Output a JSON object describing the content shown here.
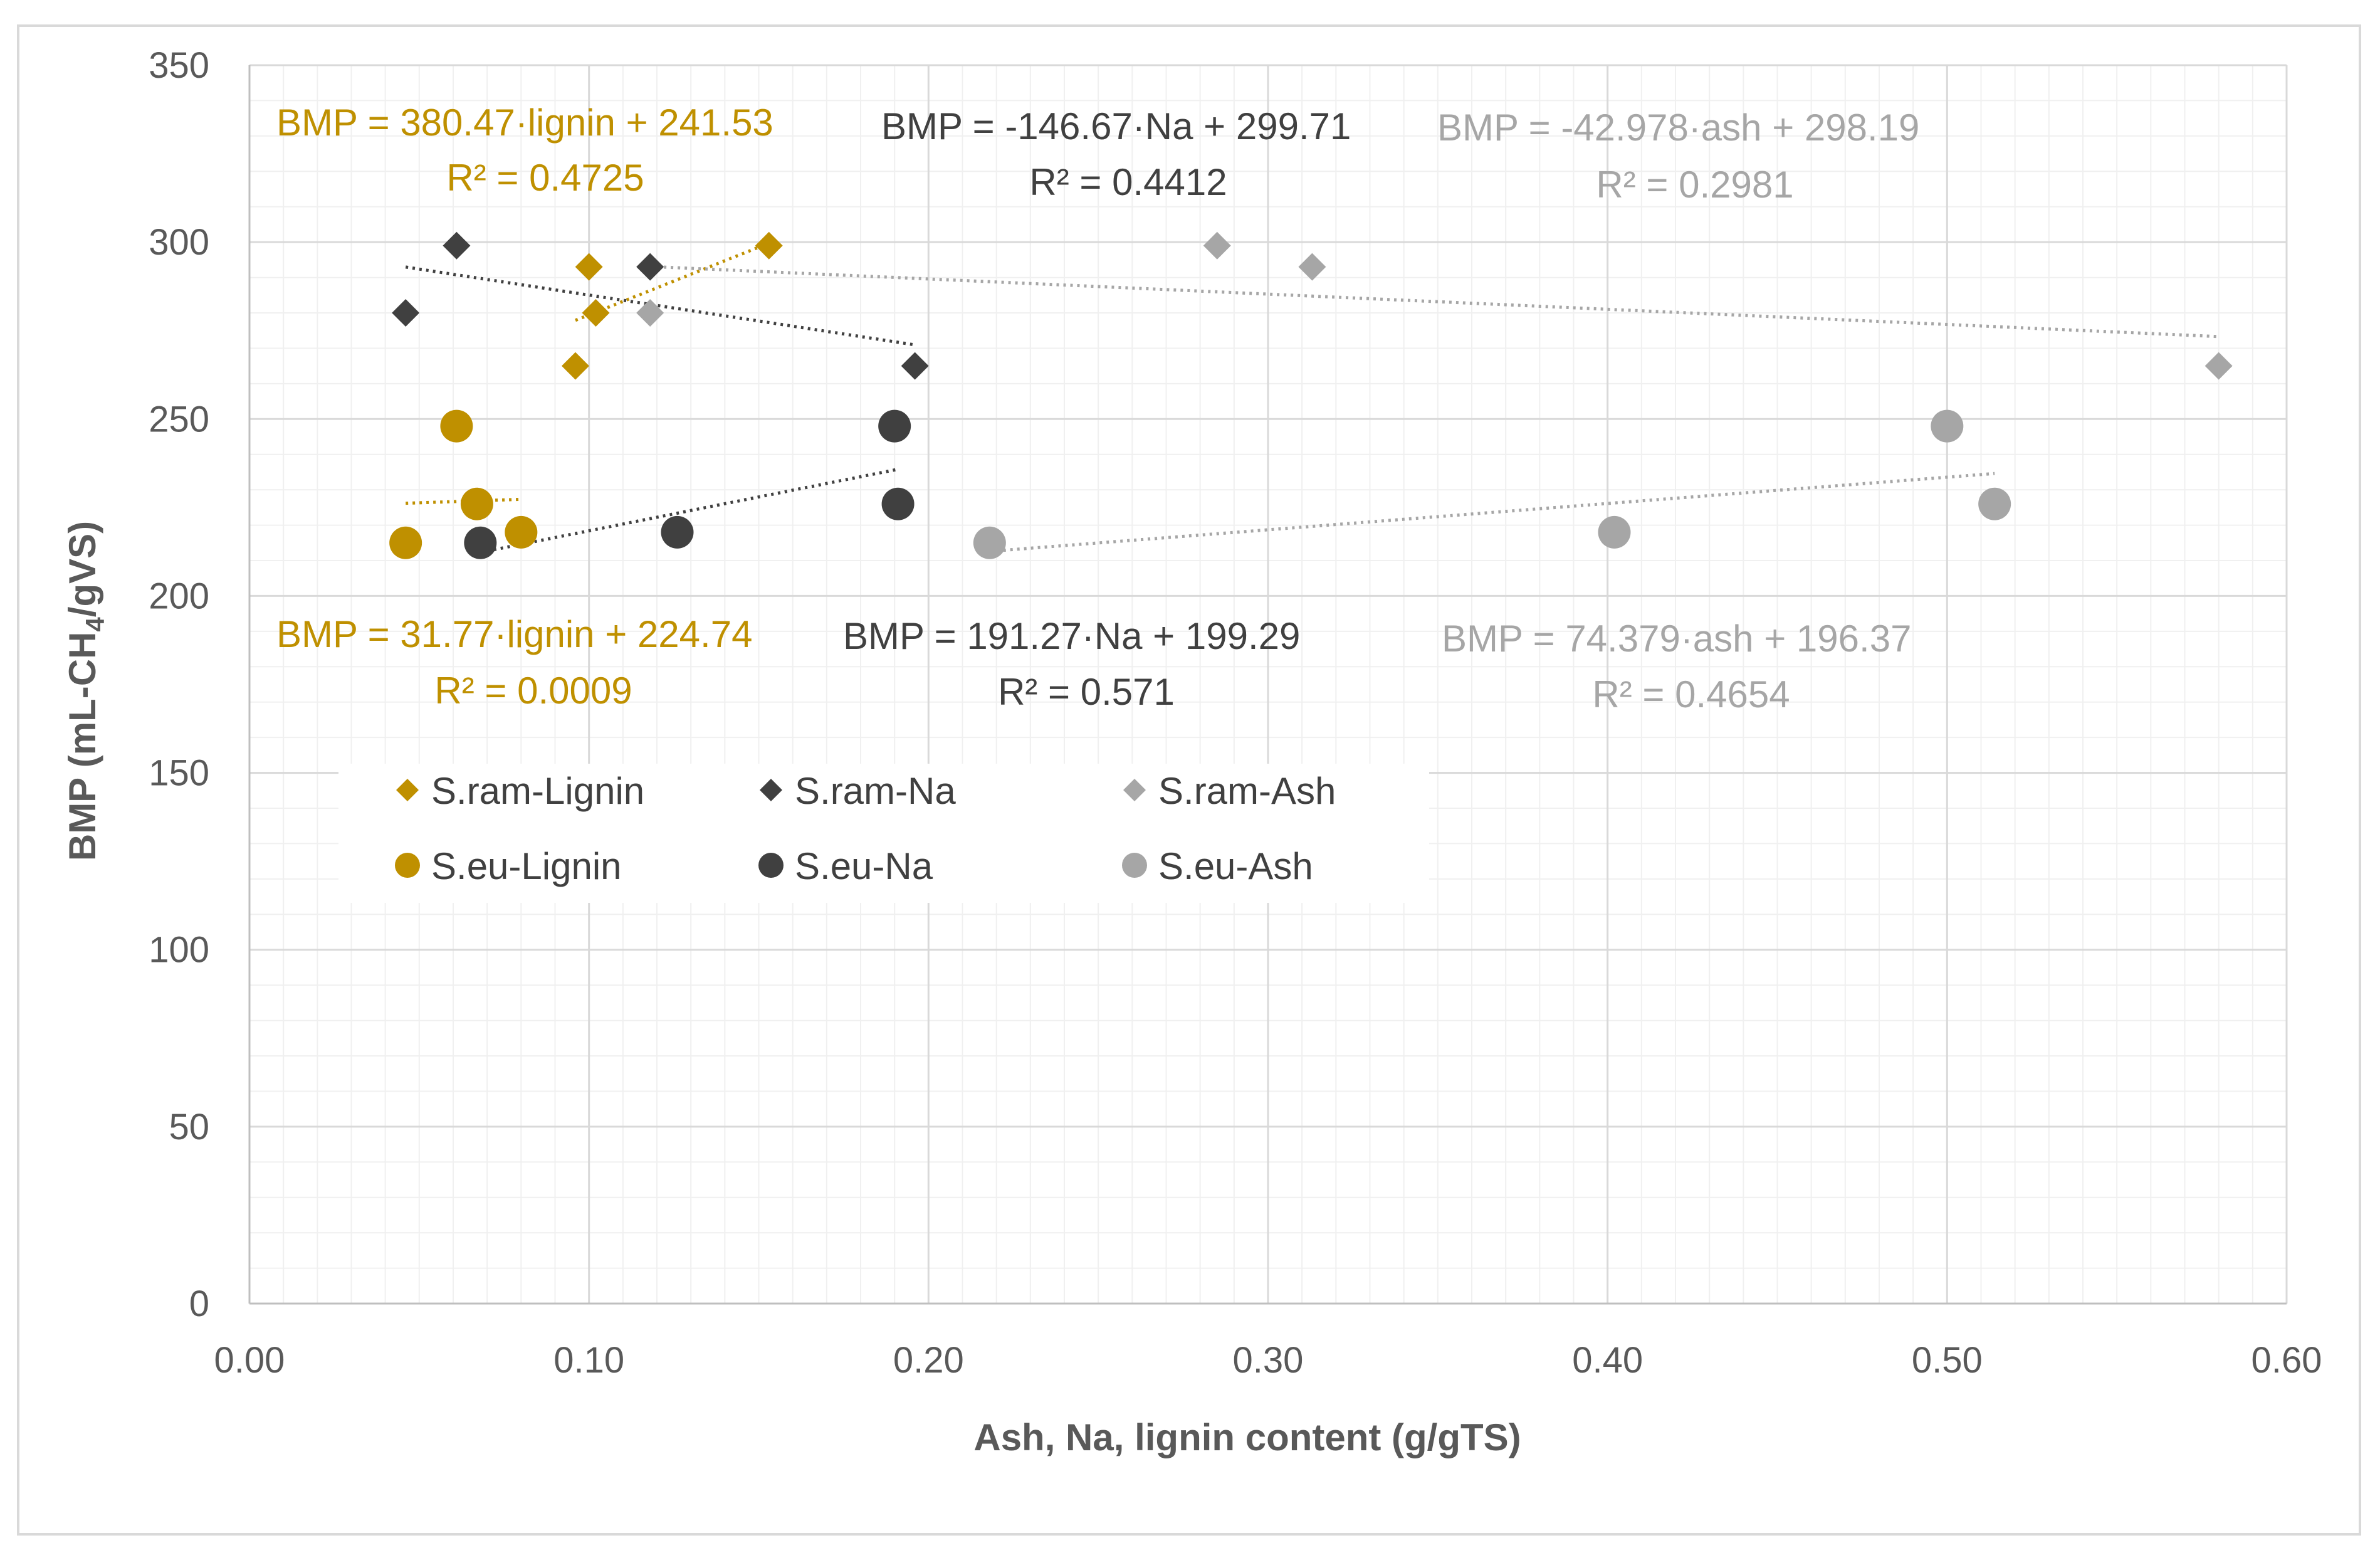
{
  "chart_data": {
    "type": "scatter",
    "title": "",
    "xlabel": "Ash, Na, lignin content (g/gTS)",
    "ylabel": {
      "main": "BMP (mL-CH",
      "sub": "4",
      "end": "/gVS)"
    },
    "xlim": [
      0,
      0.6
    ],
    "ylim": [
      0,
      350
    ],
    "x_ticks": [
      "0.00",
      "0.10",
      "0.20",
      "0.30",
      "0.40",
      "0.50",
      "0.60"
    ],
    "y_ticks": [
      "0",
      "50",
      "100",
      "150",
      "200",
      "250",
      "300",
      "350"
    ],
    "grid": "major and minor, both axes",
    "series": [
      {
        "name": "S.ram-Lignin",
        "marker": "diamond",
        "color": "#bf9000",
        "points": [
          [
            0.1,
            293
          ],
          [
            0.102,
            280
          ],
          [
            0.096,
            265
          ],
          [
            0.153,
            299
          ]
        ],
        "trend": {
          "x": [
            0.096,
            0.153
          ],
          "y": [
            277.9,
            299.7
          ]
        },
        "equation": "BMP = 380.47·lignin + 241.53",
        "r2": "R² = 0.4725"
      },
      {
        "name": "S.ram-Na",
        "marker": "diamond",
        "color": "#404040",
        "points": [
          [
            0.061,
            299
          ],
          [
            0.046,
            280
          ],
          [
            0.118,
            293
          ],
          [
            0.196,
            265
          ]
        ],
        "trend": {
          "x": [
            0.046,
            0.196
          ],
          "y": [
            292.96,
            270.96
          ]
        },
        "equation": "BMP = -146.67·Na + 299.71",
        "r2": "R² = 0.4412"
      },
      {
        "name": "S.ram-Ash",
        "marker": "diamond",
        "color": "#a6a6a6",
        "points": [
          [
            0.285,
            299
          ],
          [
            0.313,
            293
          ],
          [
            0.118,
            280
          ],
          [
            0.58,
            265
          ]
        ],
        "trend": {
          "x": [
            0.118,
            0.58
          ],
          "y": [
            293.1,
            273.3
          ]
        },
        "equation": "BMP = -42.978·ash + 298.19",
        "r2": "R² = 0.2981"
      },
      {
        "name": "S.eu-Lignin",
        "marker": "circle",
        "color": "#bf9000",
        "points": [
          [
            0.061,
            248
          ],
          [
            0.067,
            226
          ],
          [
            0.046,
            215
          ],
          [
            0.08,
            218
          ]
        ],
        "trend": {
          "x": [
            0.046,
            0.08
          ],
          "y": [
            226.2,
            227.3
          ]
        },
        "equation": "BMP = 31.77·lignin + 224.74",
        "r2": "R² = 0.0009"
      },
      {
        "name": "S.eu-Na",
        "marker": "circle",
        "color": "#404040",
        "points": [
          [
            0.19,
            248
          ],
          [
            0.191,
            226
          ],
          [
            0.068,
            215
          ],
          [
            0.126,
            218
          ]
        ],
        "trend": {
          "x": [
            0.068,
            0.191
          ],
          "y": [
            212.3,
            235.8
          ]
        },
        "equation": "BMP = 191.27·Na + 199.29",
        "r2": "R² = 0.571"
      },
      {
        "name": "S.eu-Ash",
        "marker": "circle",
        "color": "#a6a6a6",
        "points": [
          [
            0.5,
            248
          ],
          [
            0.514,
            226
          ],
          [
            0.218,
            215
          ],
          [
            0.402,
            218
          ]
        ],
        "trend": {
          "x": [
            0.218,
            0.514
          ],
          "y": [
            212.6,
            234.6
          ]
        },
        "equation": "BMP = 74.379·ash + 196.37",
        "r2": "R² = 0.4654"
      }
    ],
    "legend": {
      "position": "inside, center-left below upper equations",
      "columns": 3
    }
  }
}
